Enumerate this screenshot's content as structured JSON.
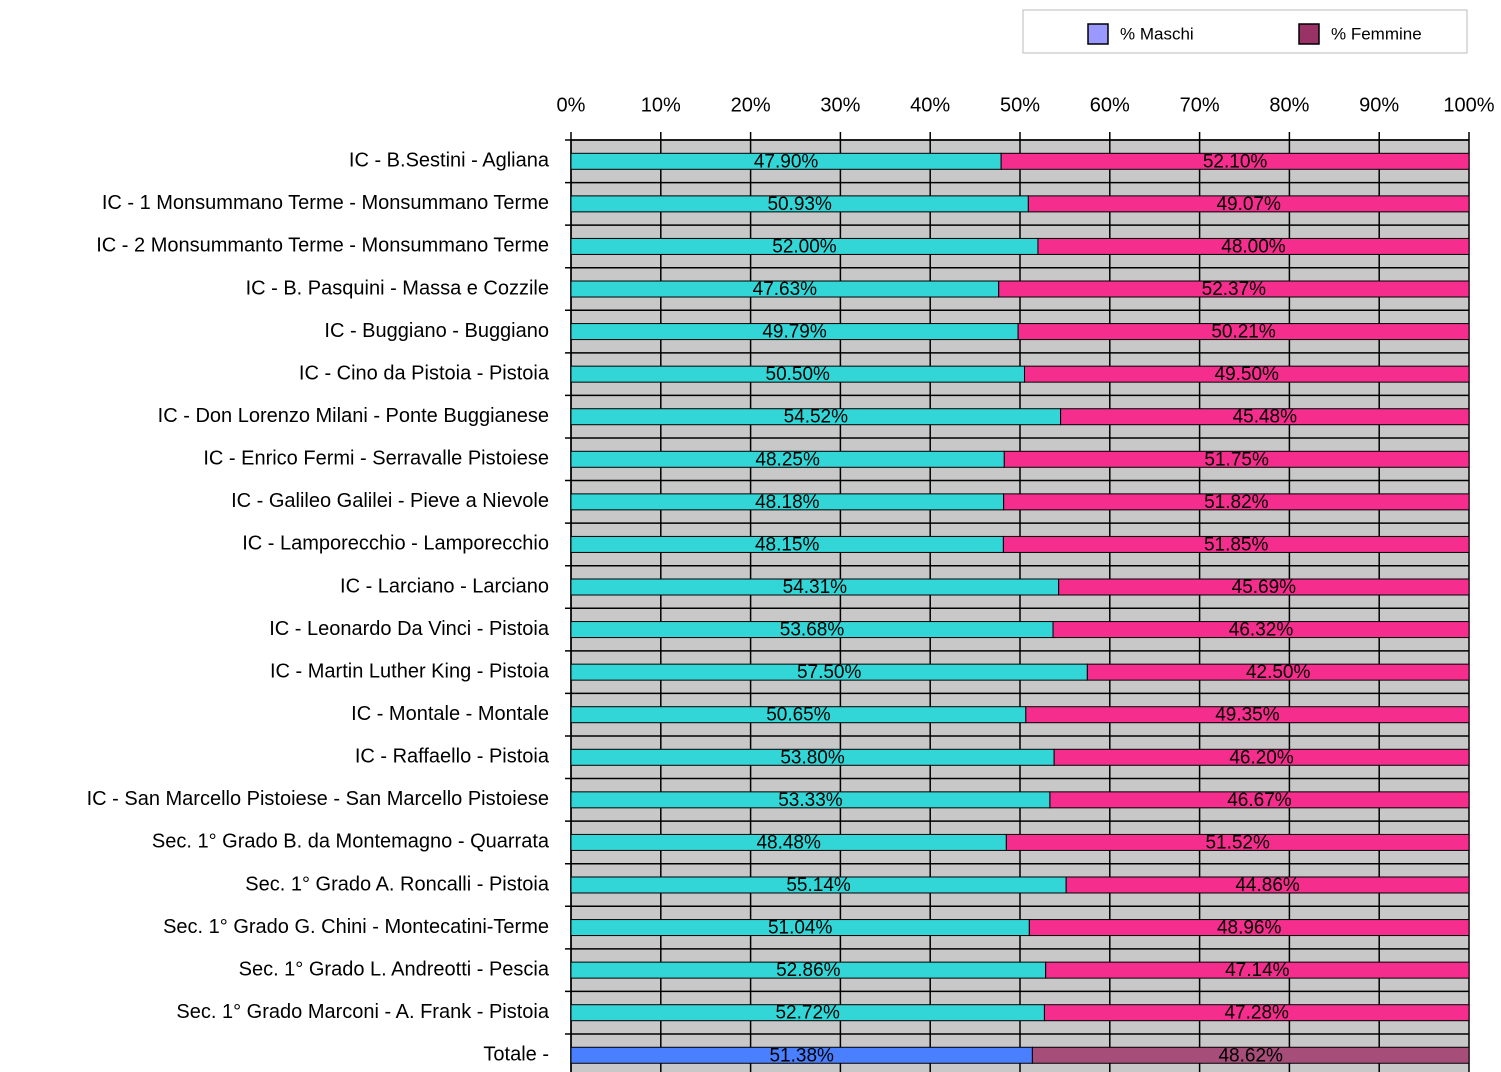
{
  "chart_data": {
    "type": "stacked_barh",
    "categories": [
      "IC -  B.Sestini - Agliana",
      "IC - 1 Monsummano Terme - Monsummano Terme",
      "IC - 2 Monsummanto Terme - Monsummano Terme",
      "IC - B. Pasquini - Massa e Cozzile",
      "IC - Buggiano - Buggiano",
      "IC - Cino da Pistoia - Pistoia",
      "IC - Don Lorenzo Milani - Ponte Buggianese",
      "IC - Enrico Fermi - Serravalle Pistoiese",
      "IC - Galileo Galilei - Pieve a Nievole",
      "IC - Lamporecchio - Lamporecchio",
      "IC - Larciano - Larciano",
      "IC - Leonardo Da Vinci - Pistoia",
      "IC - Martin Luther King - Pistoia",
      "IC - Montale - Montale",
      "IC - Raffaello - Pistoia",
      "IC - San Marcello Pistoiese - San Marcello Pistoiese",
      "Sec. 1° Grado  B. da Montemagno - Quarrata",
      "Sec. 1° Grado A. Roncalli - Pistoia",
      "Sec. 1° Grado G. Chini - Montecatini-Terme",
      "Sec. 1° Grado L. Andreotti - Pescia",
      "Sec. 1° Grado Marconi - A. Frank - Pistoia",
      "Totale - "
    ],
    "series": [
      {
        "name": "% Maschi",
        "color": "#9999ff",
        "bar_colors": [
          "#33d6d6",
          "#33d6d6",
          "#33d6d6",
          "#33d6d6",
          "#33d6d6",
          "#33d6d6",
          "#33d6d6",
          "#33d6d6",
          "#33d6d6",
          "#33d6d6",
          "#33d6d6",
          "#33d6d6",
          "#33d6d6",
          "#33d6d6",
          "#33d6d6",
          "#33d6d6",
          "#33d6d6",
          "#33d6d6",
          "#33d6d6",
          "#33d6d6",
          "#33d6d6",
          "#4a7fff"
        ],
        "values": [
          47.9,
          50.93,
          52.0,
          47.63,
          49.79,
          50.5,
          54.52,
          48.25,
          48.18,
          48.15,
          54.31,
          53.68,
          57.5,
          50.65,
          53.8,
          53.33,
          48.48,
          55.14,
          51.04,
          52.86,
          52.72,
          51.38
        ],
        "value_labels": [
          "47.90%",
          "50.93%",
          "52.00%",
          "47.63%",
          "49.79%",
          "50.50%",
          "54.52%",
          "48.25%",
          "48.18%",
          "48.15%",
          "54.31%",
          "53.68%",
          "57.50%",
          "50.65%",
          "53.80%",
          "53.33%",
          "48.48%",
          "55.14%",
          "51.04%",
          "52.86%",
          "52.72%",
          "51.38%"
        ]
      },
      {
        "name": "% Femmine",
        "color": "#993366",
        "bar_colors": [
          "#f52d8c",
          "#f52d8c",
          "#f52d8c",
          "#f52d8c",
          "#f52d8c",
          "#f52d8c",
          "#f52d8c",
          "#f52d8c",
          "#f52d8c",
          "#f52d8c",
          "#f52d8c",
          "#f52d8c",
          "#f52d8c",
          "#f52d8c",
          "#f52d8c",
          "#f52d8c",
          "#f52d8c",
          "#f52d8c",
          "#f52d8c",
          "#f52d8c",
          "#f52d8c",
          "#a64d79"
        ],
        "values": [
          52.1,
          49.07,
          48.0,
          52.37,
          50.21,
          49.5,
          45.48,
          51.75,
          51.82,
          51.85,
          45.69,
          46.32,
          42.5,
          49.35,
          46.2,
          46.67,
          51.52,
          44.86,
          48.96,
          47.14,
          47.28,
          48.62
        ],
        "value_labels": [
          "52.10%",
          "49.07%",
          "48.00%",
          "52.37%",
          "50.21%",
          "49.50%",
          "45.48%",
          "51.75%",
          "51.82%",
          "51.85%",
          "45.69%",
          "46.32%",
          "42.50%",
          "49.35%",
          "46.20%",
          "46.67%",
          "51.52%",
          "44.86%",
          "48.96%",
          "47.14%",
          "47.28%",
          "48.62%"
        ]
      }
    ],
    "xlim": [
      0,
      100
    ],
    "xticks": [
      {
        "value": 0,
        "label": "0%"
      },
      {
        "value": 10,
        "label": "10%"
      },
      {
        "value": 20,
        "label": "20%"
      },
      {
        "value": 30,
        "label": "30%"
      },
      {
        "value": 40,
        "label": "40%"
      },
      {
        "value": 50,
        "label": "50%"
      },
      {
        "value": 60,
        "label": "60%"
      },
      {
        "value": 70,
        "label": "70%"
      },
      {
        "value": 80,
        "label": "80%"
      },
      {
        "value": 90,
        "label": "90%"
      },
      {
        "value": 100,
        "label": "100%"
      }
    ],
    "grid": true,
    "legend": "top-right"
  }
}
